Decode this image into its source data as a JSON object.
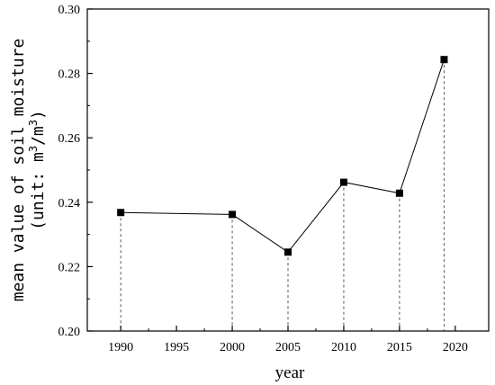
{
  "chart_data": {
    "type": "line",
    "title": "",
    "xlabel": "year",
    "ylabel_line1": "mean value of soil moisture",
    "ylabel_line2_prefix": "(unit: m",
    "ylabel_line2_mid": "/m",
    "ylabel_line2_suffix": ")",
    "ylabel_superscript": "3",
    "x": [
      1990,
      2000,
      2005,
      2010,
      2015,
      2019
    ],
    "values": [
      0.2368,
      0.2362,
      0.2245,
      0.2462,
      0.2428,
      0.2843
    ],
    "xlim": [
      1987,
      2023
    ],
    "ylim": [
      0.2,
      0.3
    ],
    "xticks": [
      1990,
      1995,
      2000,
      2005,
      2010,
      2015,
      2020
    ],
    "yticks": [
      0.2,
      0.22,
      0.24,
      0.26,
      0.28,
      0.3
    ],
    "ytick_labels": [
      "0.20",
      "0.22",
      "0.24",
      "0.26",
      "0.28",
      "0.30"
    ],
    "marker": "square",
    "drop_lines": true,
    "grid": false,
    "colors": {
      "line": "#000000",
      "marker": "#000000",
      "axis": "#000000"
    }
  }
}
